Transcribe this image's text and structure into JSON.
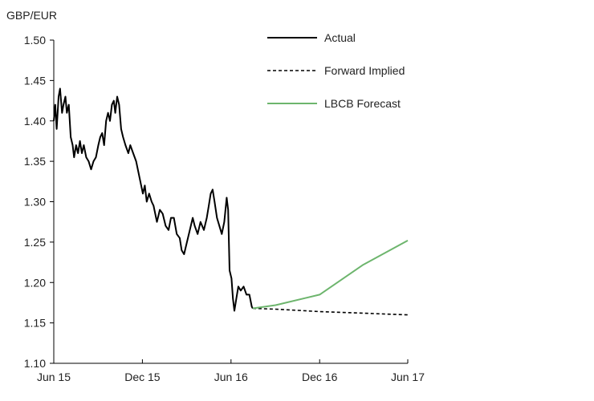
{
  "chart_data": {
    "type": "line",
    "ylabel": "GBP/EUR",
    "ylim": [
      1.1,
      1.5
    ],
    "yticks": [
      "1.10",
      "1.15",
      "1.20",
      "1.25",
      "1.30",
      "1.35",
      "1.40",
      "1.45",
      "1.50"
    ],
    "xlim": [
      "2015-06-01",
      "2017-06-01"
    ],
    "xticks": [
      {
        "date": "2015-06-01",
        "label": "Jun 15"
      },
      {
        "date": "2015-12-01",
        "label": "Dec 15"
      },
      {
        "date": "2016-06-01",
        "label": "Jun 16"
      },
      {
        "date": "2016-12-01",
        "label": "Dec 16"
      },
      {
        "date": "2017-06-01",
        "label": "Jun 17"
      }
    ],
    "grid": false,
    "legend_position": "top-right",
    "series": [
      {
        "name": "Actual",
        "style": "solid",
        "color": "#000000",
        "points": [
          [
            "2015-06-01",
            1.4
          ],
          [
            "2015-06-04",
            1.42
          ],
          [
            "2015-06-07",
            1.39
          ],
          [
            "2015-06-11",
            1.43
          ],
          [
            "2015-06-14",
            1.44
          ],
          [
            "2015-06-18",
            1.41
          ],
          [
            "2015-06-21",
            1.42
          ],
          [
            "2015-06-25",
            1.43
          ],
          [
            "2015-06-28",
            1.41
          ],
          [
            "2015-07-02",
            1.42
          ],
          [
            "2015-07-06",
            1.38
          ],
          [
            "2015-07-10",
            1.37
          ],
          [
            "2015-07-13",
            1.355
          ],
          [
            "2015-07-17",
            1.37
          ],
          [
            "2015-07-21",
            1.36
          ],
          [
            "2015-07-25",
            1.375
          ],
          [
            "2015-07-29",
            1.36
          ],
          [
            "2015-08-02",
            1.37
          ],
          [
            "2015-08-07",
            1.355
          ],
          [
            "2015-08-12",
            1.35
          ],
          [
            "2015-08-17",
            1.34
          ],
          [
            "2015-08-22",
            1.35
          ],
          [
            "2015-08-27",
            1.355
          ],
          [
            "2015-09-01",
            1.37
          ],
          [
            "2015-09-05",
            1.38
          ],
          [
            "2015-09-09",
            1.385
          ],
          [
            "2015-09-13",
            1.37
          ],
          [
            "2015-09-17",
            1.4
          ],
          [
            "2015-09-21",
            1.41
          ],
          [
            "2015-09-25",
            1.4
          ],
          [
            "2015-09-29",
            1.42
          ],
          [
            "2015-10-03",
            1.425
          ],
          [
            "2015-10-06",
            1.41
          ],
          [
            "2015-10-10",
            1.43
          ],
          [
            "2015-10-14",
            1.42
          ],
          [
            "2015-10-18",
            1.39
          ],
          [
            "2015-10-22",
            1.38
          ],
          [
            "2015-10-27",
            1.37
          ],
          [
            "2015-11-02",
            1.36
          ],
          [
            "2015-11-06",
            1.37
          ],
          [
            "2015-11-12",
            1.36
          ],
          [
            "2015-11-18",
            1.35
          ],
          [
            "2015-11-25",
            1.33
          ],
          [
            "2015-12-02",
            1.31
          ],
          [
            "2015-12-06",
            1.32
          ],
          [
            "2015-12-10",
            1.3
          ],
          [
            "2015-12-15",
            1.31
          ],
          [
            "2015-12-20",
            1.3
          ],
          [
            "2015-12-24",
            1.295
          ],
          [
            "2015-12-31",
            1.275
          ],
          [
            "2016-01-06",
            1.29
          ],
          [
            "2016-01-12",
            1.285
          ],
          [
            "2016-01-18",
            1.27
          ],
          [
            "2016-01-24",
            1.265
          ],
          [
            "2016-01-29",
            1.28
          ],
          [
            "2016-02-04",
            1.28
          ],
          [
            "2016-02-10",
            1.26
          ],
          [
            "2016-02-16",
            1.255
          ],
          [
            "2016-02-20",
            1.24
          ],
          [
            "2016-02-25",
            1.235
          ],
          [
            "2016-03-02",
            1.25
          ],
          [
            "2016-03-08",
            1.265
          ],
          [
            "2016-03-14",
            1.28
          ],
          [
            "2016-03-18",
            1.27
          ],
          [
            "2016-03-24",
            1.26
          ],
          [
            "2016-03-30",
            1.275
          ],
          [
            "2016-04-06",
            1.265
          ],
          [
            "2016-04-12",
            1.28
          ],
          [
            "2016-04-16",
            1.295
          ],
          [
            "2016-04-20",
            1.31
          ],
          [
            "2016-04-24",
            1.315
          ],
          [
            "2016-04-28",
            1.3
          ],
          [
            "2016-05-03",
            1.28
          ],
          [
            "2016-05-08",
            1.27
          ],
          [
            "2016-05-13",
            1.26
          ],
          [
            "2016-05-18",
            1.275
          ],
          [
            "2016-05-23",
            1.305
          ],
          [
            "2016-05-26",
            1.29
          ],
          [
            "2016-05-29",
            1.215
          ],
          [
            "2016-06-02",
            1.205
          ],
          [
            "2016-06-05",
            1.18
          ],
          [
            "2016-06-08",
            1.165
          ],
          [
            "2016-06-12",
            1.18
          ],
          [
            "2016-06-16",
            1.195
          ],
          [
            "2016-06-21",
            1.19
          ],
          [
            "2016-06-27",
            1.195
          ],
          [
            "2016-07-03",
            1.185
          ],
          [
            "2016-07-09",
            1.185
          ],
          [
            "2016-07-14",
            1.17
          ],
          [
            "2016-07-16",
            1.168
          ]
        ]
      },
      {
        "name": "Forward Implied",
        "style": "dashed",
        "color": "#000000",
        "points": [
          [
            "2016-07-16",
            1.168
          ],
          [
            "2016-09-01",
            1.167
          ],
          [
            "2016-12-01",
            1.164
          ],
          [
            "2017-03-01",
            1.162
          ],
          [
            "2017-06-01",
            1.16
          ]
        ]
      },
      {
        "name": "LBCB Forecast",
        "style": "solid",
        "color": "#6db56d",
        "points": [
          [
            "2016-07-16",
            1.168
          ],
          [
            "2016-09-01",
            1.172
          ],
          [
            "2016-12-01",
            1.185
          ],
          [
            "2017-03-01",
            1.222
          ],
          [
            "2017-06-01",
            1.252
          ]
        ]
      }
    ]
  }
}
